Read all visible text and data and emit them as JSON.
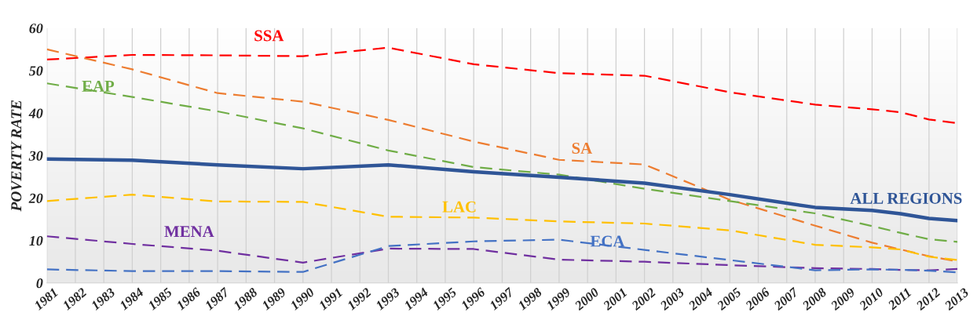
{
  "chart_data": {
    "type": "line",
    "ylabel": "POVERTY RATE",
    "x": [
      1981,
      1984,
      1987,
      1990,
      1993,
      1996,
      1999,
      2002,
      2005,
      2008,
      2010,
      2011,
      2012,
      2013
    ],
    "series": [
      {
        "name": "SSA",
        "color": "#ff0000",
        "line_style": "dashed",
        "values": [
          52.6,
          53.7,
          53.6,
          53.4,
          55.4,
          51.5,
          49.4,
          48.8,
          44.9,
          42.0,
          40.9,
          40.2,
          38.5,
          37.6
        ]
      },
      {
        "name": "SA",
        "color": "#ed7d31",
        "line_style": "dashed",
        "values": [
          55.0,
          50.3,
          44.7,
          42.7,
          38.4,
          33.3,
          29.0,
          27.9,
          19.6,
          13.5,
          9.5,
          7.9,
          6.3,
          5.1
        ]
      },
      {
        "name": "EAP",
        "color": "#70ad47",
        "line_style": "dashed",
        "values": [
          47.0,
          43.8,
          40.4,
          36.4,
          31.2,
          27.3,
          25.5,
          22.2,
          19.3,
          16.4,
          13.4,
          11.8,
          10.3,
          9.7
        ]
      },
      {
        "name": "ALL REGIONS",
        "color": "#2f5597",
        "line_style": "solid",
        "values": [
          29.2,
          28.9,
          27.8,
          26.9,
          27.8,
          26.2,
          24.9,
          23.5,
          20.8,
          17.8,
          17.1,
          16.3,
          15.2,
          14.7
        ]
      },
      {
        "name": "LAC",
        "color": "#ffc000",
        "line_style": "dashed",
        "values": [
          19.3,
          20.8,
          19.2,
          19.1,
          15.6,
          15.4,
          14.5,
          14.0,
          12.4,
          9.0,
          8.4,
          7.9,
          6.2,
          5.4
        ]
      },
      {
        "name": "MENA",
        "color": "#7030a0",
        "line_style": "dashed",
        "values": [
          11.0,
          9.2,
          7.6,
          4.8,
          8.1,
          8.0,
          5.5,
          5.0,
          4.2,
          3.5,
          3.3,
          3.1,
          3.0,
          3.3
        ]
      },
      {
        "name": "ECA",
        "color": "#4472c4",
        "line_style": "dashed",
        "values": [
          3.2,
          2.8,
          2.8,
          2.6,
          8.7,
          9.8,
          10.2,
          7.8,
          5.4,
          3.0,
          3.2,
          3.1,
          2.9,
          2.5
        ]
      }
    ],
    "xlim": [
      1981,
      2013
    ],
    "xticks": [
      1981,
      1982,
      1983,
      1984,
      1985,
      1986,
      1987,
      1988,
      1989,
      1990,
      1991,
      1992,
      1993,
      1994,
      1995,
      1996,
      1997,
      1998,
      1999,
      2000,
      2001,
      2002,
      2003,
      2004,
      2005,
      2006,
      2007,
      2008,
      2009,
      2010,
      2011,
      2012,
      2013
    ],
    "ylim": [
      0,
      60
    ],
    "yticks": [
      0,
      10,
      20,
      30,
      40,
      50,
      60
    ],
    "grid": "x",
    "legend": false,
    "marker": "none"
  }
}
